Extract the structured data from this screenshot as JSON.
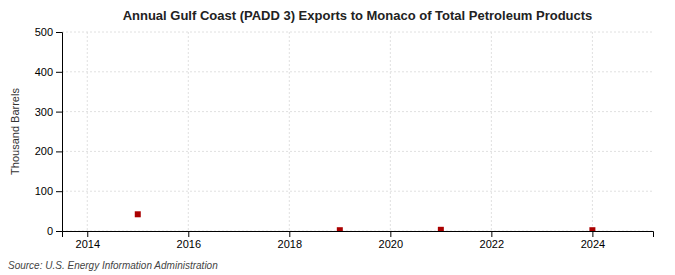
{
  "chart_data": {
    "type": "scatter",
    "title": "Annual Gulf Coast (PADD 3) Exports to Monaco of Total Petroleum Products",
    "ylabel": "Thousand Barrels",
    "source": "Source: U.S. Energy Information Administration",
    "x": [
      2015,
      2019,
      2021,
      2024
    ],
    "values": [
      42,
      2,
      3,
      2
    ],
    "color": "#aa0000",
    "marker": "square",
    "xlim": [
      2013.5,
      2025.2
    ],
    "ylim": [
      0,
      500
    ],
    "xticks": [
      2014,
      2016,
      2018,
      2020,
      2022,
      2024
    ],
    "yticks": [
      0,
      100,
      200,
      300,
      400,
      500
    ],
    "grid": true
  }
}
